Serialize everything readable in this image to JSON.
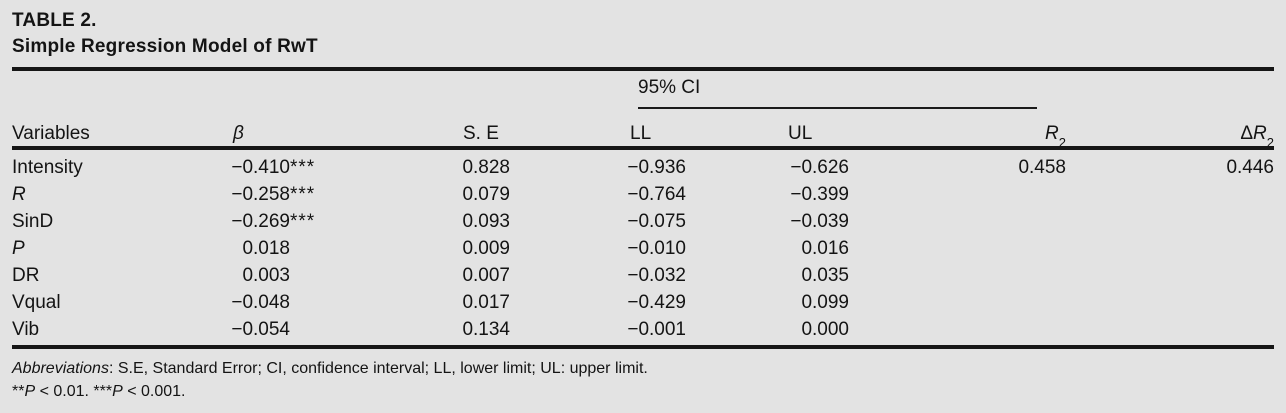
{
  "page": {
    "background_color": "#e3e3e3",
    "text_color": "#141414",
    "rule_color": "#161616"
  },
  "table": {
    "label": "TABLE 2.",
    "title": "Simple Regression Model of RwT",
    "spanner": "95% CI",
    "columns": {
      "variables": "Variables",
      "beta": "β",
      "se": "S. E",
      "ll": "LL",
      "ul": "UL",
      "r2_base": "R",
      "r2_sup": "2",
      "delta": "Δ ",
      "delta_r_base": "R",
      "delta_r_sup": "2"
    },
    "rows": [
      {
        "variable": "Intensity",
        "beta": "−0.410",
        "stars": "***",
        "se": "0.828",
        "ll": "−0.936",
        "ul": "−0.626",
        "r2": "0.458",
        "dr2": "0.446"
      },
      {
        "variable": "R",
        "beta": "−0.258",
        "stars": "***",
        "se": "0.079",
        "ll": "−0.764",
        "ul": "−0.399",
        "r2": "",
        "dr2": ""
      },
      {
        "variable": "SinD",
        "beta": "−0.269",
        "stars": "***",
        "se": "0.093",
        "ll": "−0.075",
        "ul": "−0.039",
        "r2": "",
        "dr2": ""
      },
      {
        "variable": "P",
        "beta": "0.018",
        "stars": "",
        "se": "0.009",
        "ll": "−0.010",
        "ul": "0.016",
        "r2": "",
        "dr2": ""
      },
      {
        "variable": "DR",
        "beta": "0.003",
        "stars": "",
        "se": "0.007",
        "ll": "−0.032",
        "ul": "0.035",
        "r2": "",
        "dr2": ""
      },
      {
        "variable": "Vqual",
        "beta": "−0.048",
        "stars": "",
        "se": "0.017",
        "ll": "−0.429",
        "ul": "0.099",
        "r2": "",
        "dr2": ""
      },
      {
        "variable": "Vib",
        "beta": "−0.054",
        "stars": "",
        "se": "0.134",
        "ll": "−0.001",
        "ul": "0.000",
        "r2": "",
        "dr2": ""
      }
    ]
  },
  "footnotes": {
    "abbreviations_label": "Abbreviations",
    "abbreviations_text": ": S.E, Standard Error; CI, confidence interval; LL, lower limit; UL: upper limit.",
    "significance": {
      "stars2": "**",
      "p1": "P",
      "text1": " < 0.01. ",
      "stars3": "***",
      "p2": "P",
      "text2": " < 0.001."
    }
  }
}
